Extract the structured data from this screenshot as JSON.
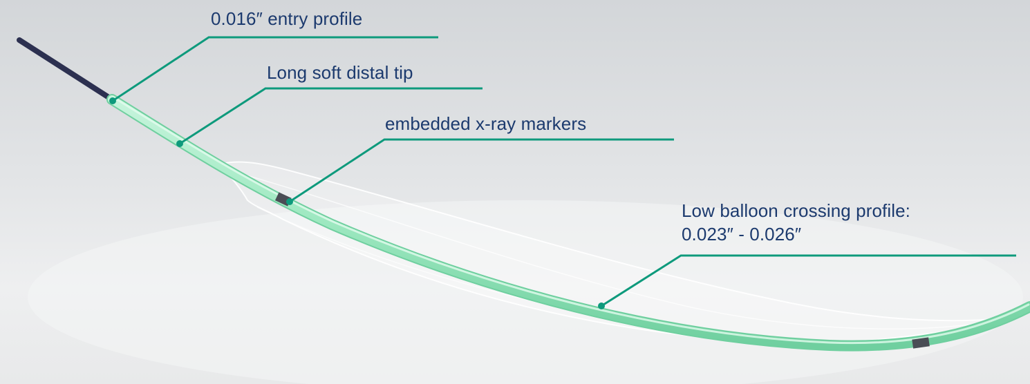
{
  "callouts": {
    "entry_profile": "0.016″ entry profile",
    "distal_tip": "Long soft distal tip",
    "xray_markers": "embedded x-ray markers",
    "balloon_profile_line1": "Low balloon crossing profile:",
    "balloon_profile_line2": "0.023″ - 0.026″"
  },
  "colors": {
    "leader": "#0e9a7c",
    "catheter": "#9de8c0",
    "catheter_edge": "#6fcf9f",
    "wire": "#2c3050",
    "label_text": "#1c3a6e",
    "balloon_outline": "#ffffff"
  }
}
